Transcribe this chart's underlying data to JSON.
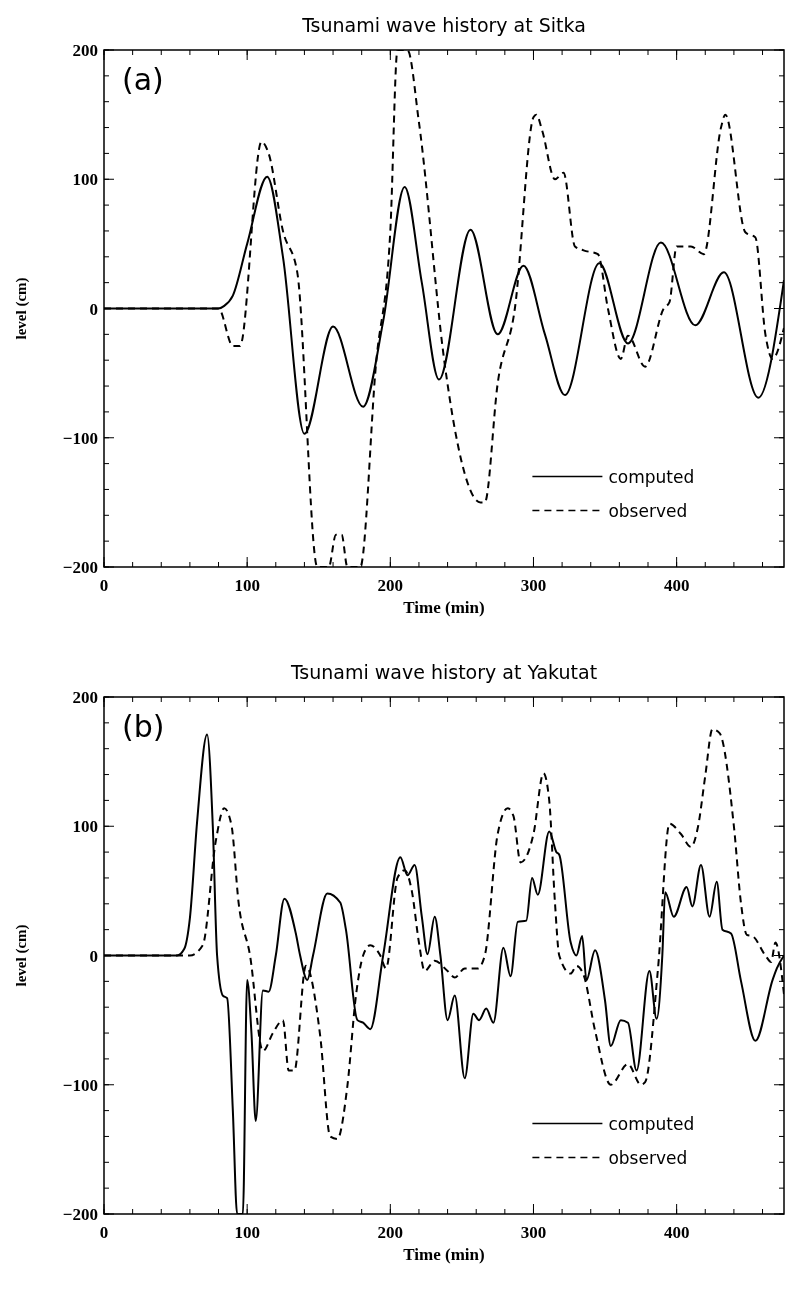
{
  "chart_data": [
    {
      "type": "line",
      "title": "Tsunami wave history at Sitka",
      "xlabel": "Time (min)",
      "ylabel": "level (cm)",
      "annotations": [
        "(a)"
      ],
      "xlim": [
        0,
        475
      ],
      "xticks": [
        0,
        100,
        200,
        300,
        400
      ],
      "ylim": [
        -200,
        200
      ],
      "yticks": [
        -200,
        -100,
        0,
        100,
        200
      ],
      "grid": false,
      "legend": "right",
      "series": [
        {
          "name": "computed",
          "color": "#000000",
          "line_style": "solid",
          "x": [
            0,
            80,
            84,
            90,
            100,
            114,
            125,
            140,
            160,
            181,
            195,
            210,
            222,
            234,
            256,
            275,
            293,
            308,
            322,
            346,
            366,
            389,
            413,
            433,
            457,
            475
          ],
          "values": [
            0,
            0,
            2,
            10,
            50,
            102,
            40,
            -97,
            -14,
            -76,
            -10,
            94,
            20,
            -55,
            61,
            -20,
            33,
            -20,
            -67,
            35,
            -27,
            51,
            -13,
            28,
            -69,
            22
          ]
        },
        {
          "name": "observed",
          "color": "#000000",
          "line_style": "dashed",
          "x": [
            0,
            80,
            90,
            95,
            110,
            115,
            125,
            135,
            149,
            157,
            162,
            166,
            170,
            179,
            190,
            200,
            205,
            212,
            220,
            238,
            245,
            263,
            266,
            275,
            287,
            300,
            302,
            306,
            315,
            321,
            329,
            335,
            345,
            352,
            361,
            366,
            378,
            391,
            395,
            400,
            410,
            419,
            431,
            434,
            448,
            455,
            462,
            467,
            475
          ],
          "values": [
            0,
            0,
            -29,
            -29,
            129,
            120,
            60,
            28,
            -200,
            -200,
            -175,
            -175,
            -200,
            -200,
            -43,
            60,
            200,
            200,
            144,
            -43,
            -93,
            -150,
            -150,
            -58,
            0,
            148,
            150,
            138,
            100,
            105,
            48,
            45,
            42,
            0,
            -39,
            -21,
            -45,
            0,
            5,
            48,
            48,
            42,
            140,
            150,
            59,
            55,
            -20,
            -39,
            -15
          ]
        }
      ]
    },
    {
      "type": "line",
      "title": "Tsunami wave history at Yakutat",
      "xlabel": "Time (min)",
      "ylabel": "level (cm)",
      "annotations": [
        "(b)"
      ],
      "xlim": [
        0,
        475
      ],
      "xticks": [
        0,
        100,
        200,
        300,
        400
      ],
      "ylim": [
        -200,
        200
      ],
      "yticks": [
        -200,
        -100,
        0,
        100,
        200
      ],
      "grid": false,
      "legend": "right",
      "series": [
        {
          "name": "computed",
          "color": "#000000",
          "line_style": "solid",
          "x": [
            0,
            51,
            56,
            60,
            65,
            72,
            76,
            79,
            83,
            86,
            90,
            93,
            97,
            100,
            103,
            106,
            111,
            115,
            120,
            126,
            134,
            137,
            142,
            146,
            156,
            165,
            169,
            177,
            181,
            186,
            195,
            207,
            212,
            217,
            222,
            226,
            231,
            235,
            240,
            245,
            252,
            258,
            262,
            267,
            272,
            279,
            284,
            289,
            295,
            299,
            303,
            311,
            316,
            318,
            326,
            330,
            334,
            337,
            343,
            350,
            354,
            361,
            366,
            372,
            381,
            386,
            390,
            392,
            398,
            407,
            411,
            417,
            423,
            428,
            432,
            438,
            445,
            455,
            467,
            470,
            475
          ],
          "values": [
            0,
            0,
            5,
            29,
            103,
            171,
            100,
            0,
            -31,
            -33,
            -120,
            -200,
            -200,
            -19,
            -60,
            -128,
            -27,
            -28,
            0,
            44,
            17,
            0,
            -19,
            0,
            48,
            41,
            20,
            -50,
            -52,
            -57,
            0,
            76,
            62,
            70,
            30,
            1,
            30,
            0,
            -50,
            -31,
            -95,
            -45,
            -50,
            -41,
            -52,
            6,
            -16,
            26,
            27,
            60,
            47,
            96,
            80,
            78,
            10,
            0,
            15,
            -19,
            4,
            -35,
            -70,
            -50,
            -52,
            -89,
            -12,
            -49,
            0,
            49,
            30,
            53,
            38,
            70,
            30,
            57,
            20,
            17,
            -20,
            -66,
            -19,
            -10,
            0
          ]
        },
        {
          "name": "observed",
          "color": "#000000",
          "line_style": "dashed",
          "x": [
            0,
            60,
            69,
            78,
            84,
            89,
            94,
            102,
            111,
            118,
            125,
            129,
            133,
            141,
            151,
            158,
            163,
            170,
            176,
            181,
            186,
            193,
            197,
            205,
            210,
            215,
            220,
            224,
            231,
            240,
            245,
            252,
            261,
            266,
            275,
            282,
            286,
            291,
            300,
            307,
            311,
            315,
            318,
            326,
            330,
            335,
            343,
            354,
            366,
            375,
            378,
            387,
            395,
            403,
            410,
            415,
            420,
            425,
            430,
            440,
            445,
            449,
            453,
            462,
            466,
            469,
            475
          ],
          "values": [
            0,
            0,
            8,
            88,
            114,
            101,
            41,
            0,
            -74,
            -60,
            -50,
            -89,
            -89,
            -8,
            -62,
            -140,
            -142,
            -101,
            -31,
            0,
            8,
            0,
            -10,
            60,
            66,
            50,
            10,
            -12,
            -4,
            -12,
            -17,
            -10,
            -10,
            0,
            94,
            114,
            108,
            72,
            94,
            141,
            120,
            41,
            0,
            -14,
            -8,
            -15,
            -58,
            -100,
            -84,
            -100,
            -98,
            -10,
            102,
            94,
            84,
            100,
            139,
            175,
            172,
            100,
            40,
            16,
            15,
            0,
            -5,
            10,
            -30
          ]
        }
      ]
    }
  ]
}
